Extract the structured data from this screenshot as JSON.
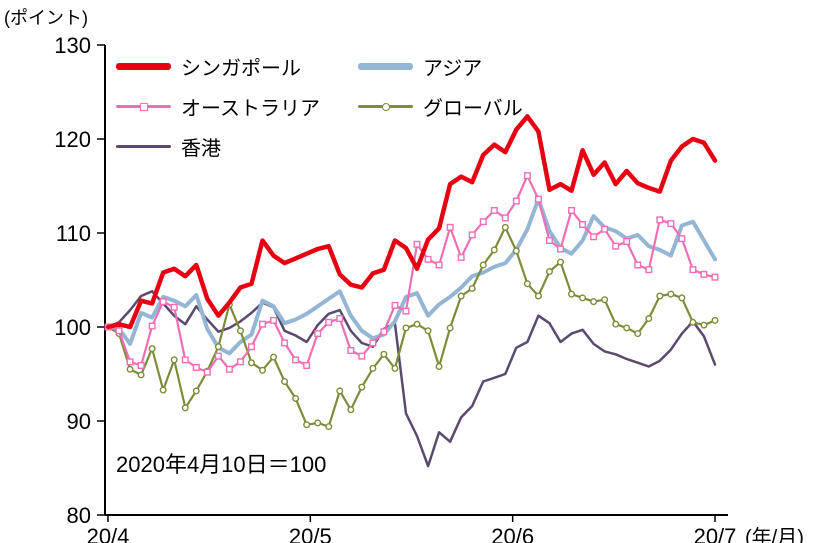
{
  "chart_data": {
    "type": "line",
    "title": "",
    "unit_label": "(ポイント)",
    "x_unit_label": "(年/月)",
    "annotation": "2020年4月10日＝100",
    "ylim": [
      80,
      130
    ],
    "y_ticks": [
      80,
      90,
      100,
      110,
      120,
      130
    ],
    "x_tick_labels": [
      "20/4",
      "20/5",
      "20/6",
      "20/7"
    ],
    "grid": false,
    "legend_position": "top-left-inside",
    "axis_color": "#000000",
    "series": [
      {
        "id": "singapore",
        "name": "シンガポール",
        "color": "#e60012",
        "width": 4.5,
        "marker": "none",
        "values": [
          100,
          100.3,
          100,
          102.8,
          102.5,
          105.8,
          106.2,
          105.4,
          106.6,
          103,
          101.2,
          102.6,
          104.2,
          104.6,
          109.2,
          107.6,
          106.8,
          107.3,
          107.8,
          108.3,
          108.6,
          105.6,
          104.5,
          104.2,
          105.7,
          106.1,
          109.2,
          108.4,
          106.2,
          109.3,
          110.5,
          115.2,
          116,
          115.4,
          118.3,
          119.4,
          118.6,
          121,
          122.4,
          120.8,
          114.6,
          115.2,
          114.5,
          118.8,
          116.2,
          117.5,
          115.2,
          116.6,
          115.3,
          114.8,
          114.4,
          117.7,
          119.2,
          120,
          119.6,
          117.7
        ]
      },
      {
        "id": "asia",
        "name": "アジア",
        "color": "#94b6d4",
        "width": 4,
        "marker": "none",
        "values": [
          100,
          99.8,
          98.2,
          101.5,
          101,
          103.2,
          102.8,
          102.2,
          103.4,
          99.8,
          97.8,
          97.2,
          98.4,
          99.2,
          102.8,
          102.2,
          100.4,
          100.8,
          101.4,
          102.2,
          103,
          103.8,
          101.2,
          99.6,
          98.8,
          99.2,
          100.6,
          103.2,
          103.6,
          101.2,
          102.4,
          103.2,
          104.2,
          105.4,
          105.8,
          106.4,
          106.8,
          108.2,
          110.4,
          113.6,
          110.2,
          108.4,
          107.8,
          109.2,
          111.8,
          110.6,
          110.2,
          109.4,
          109.8,
          108.6,
          108.2,
          107.6,
          110.8,
          111.2,
          109.2,
          107.2
        ]
      },
      {
        "id": "australia",
        "name": "オーストラリア",
        "color": "#f06eb4",
        "width": 2.2,
        "marker": "square",
        "values": [
          100,
          99.6,
          96.3,
          95.9,
          100.1,
          102.7,
          102.1,
          96.5,
          95.7,
          95.2,
          96.9,
          95.5,
          96.3,
          97.9,
          100.3,
          100.7,
          98.3,
          96.5,
          95.9,
          99.3,
          100.5,
          100.9,
          97.5,
          96.9,
          98.3,
          99.5,
          102.3,
          101.7,
          108.8,
          107.2,
          106.6,
          110.6,
          107.4,
          109.8,
          111.2,
          112.4,
          111.6,
          113.4,
          116.1,
          113.6,
          109.2,
          108.3,
          112.4,
          110.9,
          109.6,
          110.4,
          108.6,
          109.1,
          106.6,
          106.1,
          111.4,
          111,
          109.4,
          106.1,
          105.6,
          105.3
        ]
      },
      {
        "id": "global",
        "name": "グローバル",
        "color": "#7d8c3a",
        "width": 2.2,
        "marker": "circle",
        "values": [
          100,
          99.3,
          95.5,
          94.9,
          97.7,
          93.3,
          96.5,
          91.4,
          93.2,
          95.3,
          97.9,
          102.4,
          99.6,
          96.2,
          95.4,
          96.8,
          94.2,
          92.4,
          89.6,
          89.8,
          89.4,
          93.2,
          91.2,
          93.6,
          95.6,
          97.1,
          95.6,
          99.9,
          100.3,
          99.6,
          95.8,
          99.9,
          103.3,
          104.1,
          106.6,
          108.2,
          110.6,
          108.1,
          104.6,
          103.3,
          105.9,
          106.9,
          103.5,
          103.1,
          102.7,
          102.9,
          100.3,
          99.9,
          99.3,
          100.9,
          103.3,
          103.5,
          103.1,
          100.5,
          100.2,
          100.7
        ]
      },
      {
        "id": "hong-kong",
        "name": "香港",
        "color": "#5a4b6e",
        "width": 2.5,
        "marker": "none",
        "values": [
          100,
          100.5,
          101.8,
          103.3,
          103.8,
          102.5,
          101.2,
          100.3,
          102.2,
          100.8,
          99.5,
          99.9,
          100.6,
          101.5,
          102.6,
          102.1,
          99.6,
          99.1,
          98.4,
          100.2,
          101.4,
          101.8,
          99.6,
          98.3,
          97.9,
          99.8,
          100.4,
          90.8,
          88.4,
          85.2,
          88.8,
          87.8,
          90.4,
          91.6,
          94.2,
          94.6,
          95,
          97.8,
          98.4,
          101.2,
          100.4,
          98.4,
          99.3,
          99.7,
          98.2,
          97.4,
          97.1,
          96.6,
          96.2,
          95.8,
          96.4,
          97.6,
          99.3,
          100.6,
          99,
          96
        ]
      }
    ]
  }
}
